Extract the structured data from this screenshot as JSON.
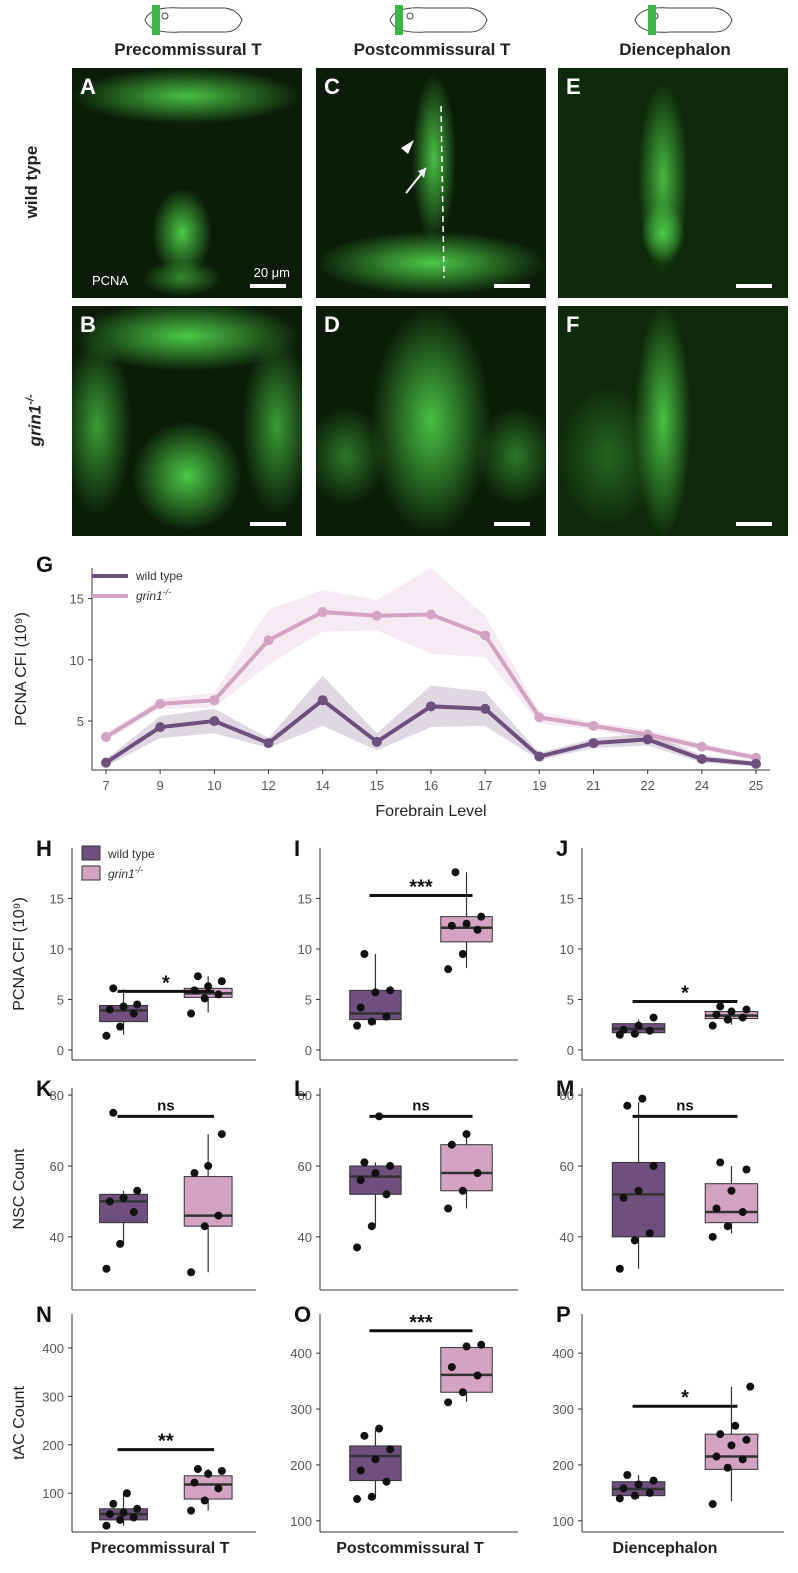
{
  "columns": [
    {
      "title": "Precommissural T"
    },
    {
      "title": "Postcommissural T"
    },
    {
      "title": "Diencephalon"
    }
  ],
  "rows": [
    {
      "label": "wild type"
    },
    {
      "label": "grin1",
      "label_sup": "-/-"
    }
  ],
  "micro_panels": [
    {
      "letter": "A"
    },
    {
      "letter": "C"
    },
    {
      "letter": "E"
    },
    {
      "letter": "B"
    },
    {
      "letter": "D"
    },
    {
      "letter": "F"
    }
  ],
  "stain_label": "PCNA",
  "scale_label": "20 μm",
  "colors": {
    "wild_type": "#6e4f7e",
    "grin1": "#d4a3c4"
  },
  "chart_data": [
    {
      "panel": "G",
      "type": "line",
      "ylabel": "PCNA CFI (10⁹)",
      "xlabel": "Forebrain Level",
      "x": [
        7,
        9,
        10,
        12,
        14,
        15,
        16,
        17,
        19,
        21,
        22,
        24,
        25
      ],
      "ylim": [
        1,
        17.5
      ],
      "yticks": [
        5,
        10,
        15
      ],
      "legend": "top-left",
      "series": [
        {
          "name": "wild type",
          "values": [
            1.6,
            4.5,
            5.0,
            3.2,
            6.7,
            3.3,
            6.2,
            6.0,
            2.1,
            3.2,
            3.5,
            1.9,
            1.5
          ],
          "lower": [
            1.3,
            3.6,
            4.0,
            2.8,
            4.6,
            2.6,
            4.5,
            4.6,
            1.8,
            2.8,
            3.0,
            1.6,
            1.3
          ],
          "upper": [
            1.9,
            5.4,
            6.0,
            3.6,
            8.7,
            4.0,
            7.9,
            7.4,
            2.4,
            3.6,
            4.0,
            2.2,
            1.7
          ]
        },
        {
          "name": "grin1",
          "name_sup": "-/-",
          "values": [
            3.7,
            6.4,
            6.7,
            11.6,
            13.9,
            13.6,
            13.7,
            12.0,
            5.3,
            4.6,
            3.9,
            2.9,
            2.0
          ],
          "lower": [
            3.4,
            6.0,
            6.1,
            9.6,
            12.3,
            12.4,
            10.5,
            10.2,
            4.8,
            4.3,
            3.4,
            2.6,
            1.8
          ],
          "upper": [
            4.0,
            6.8,
            7.3,
            14.1,
            15.7,
            14.9,
            17.5,
            13.6,
            5.8,
            4.9,
            4.3,
            3.2,
            2.2
          ]
        }
      ]
    },
    {
      "panel": "H",
      "type": "box",
      "ylabel": "PCNA CFI (10⁹)",
      "ylim": [
        -1,
        20
      ],
      "yticks": [
        0,
        5,
        10,
        15
      ],
      "sig": "*",
      "sig_y": 5.8,
      "legend": "top-left",
      "wt": {
        "min": 1.5,
        "q1": 2.8,
        "med": 3.9,
        "q3": 4.4,
        "max": 6.0,
        "points": [
          1.4,
          2.3,
          3.6,
          4.0,
          4.3,
          4.5,
          6.1
        ]
      },
      "grin": {
        "min": 3.7,
        "q1": 5.2,
        "med": 5.6,
        "q3": 6.1,
        "max": 7.3,
        "points": [
          3.6,
          5.1,
          5.5,
          5.9,
          6.3,
          6.8,
          7.3
        ]
      }
    },
    {
      "panel": "I",
      "type": "box",
      "ylim": [
        -1,
        20
      ],
      "yticks": [
        0,
        5,
        10,
        15
      ],
      "sig": "***",
      "sig_y": 15.3,
      "wt": {
        "min": 2.5,
        "q1": 3.0,
        "med": 3.6,
        "q3": 5.9,
        "max": 9.5,
        "points": [
          2.4,
          2.8,
          3.3,
          4.2,
          5.7,
          5.9,
          9.5
        ]
      },
      "grin": {
        "min": 8.1,
        "q1": 10.7,
        "med": 12.1,
        "q3": 13.2,
        "max": 17.6,
        "points": [
          8.0,
          9.5,
          11.9,
          12.3,
          12.5,
          13.2,
          17.6
        ]
      }
    },
    {
      "panel": "J",
      "type": "box",
      "ylim": [
        -1,
        20
      ],
      "yticks": [
        0,
        5,
        10,
        15
      ],
      "sig": "*",
      "sig_y": 4.8,
      "wt": {
        "min": 1.5,
        "q1": 1.7,
        "med": 2.1,
        "q3": 2.6,
        "max": 3.0,
        "points": [
          1.5,
          1.6,
          1.9,
          2.0,
          2.4,
          3.2
        ]
      },
      "grin": {
        "min": 2.5,
        "q1": 3.1,
        "med": 3.4,
        "q3": 3.8,
        "max": 4.2,
        "points": [
          2.4,
          3.0,
          3.2,
          3.5,
          3.8,
          4.0,
          4.3
        ]
      }
    },
    {
      "panel": "K",
      "type": "box",
      "ylabel": "NSC Count",
      "ylim": [
        25,
        82
      ],
      "yticks": [
        40,
        60,
        80
      ],
      "sig": "ns",
      "sig_y": 74,
      "wt": {
        "min": 38,
        "q1": 44,
        "med": 50,
        "q3": 52,
        "max": 53,
        "points": [
          31,
          38,
          47,
          50,
          51,
          53,
          75
        ]
      },
      "grin": {
        "min": 30,
        "q1": 43,
        "med": 46,
        "q3": 57,
        "max": 69,
        "points": [
          30,
          43,
          46,
          58,
          60,
          69
        ]
      }
    },
    {
      "panel": "L",
      "type": "box",
      "ylim": [
        25,
        82
      ],
      "yticks": [
        40,
        60,
        80
      ],
      "sig": "ns",
      "sig_y": 74,
      "wt": {
        "min": 43,
        "q1": 52,
        "med": 57,
        "q3": 60,
        "max": 61,
        "points": [
          37,
          43,
          52,
          56,
          58,
          60,
          61,
          74
        ]
      },
      "grin": {
        "min": 48,
        "q1": 53,
        "med": 58,
        "q3": 66,
        "max": 69,
        "points": [
          48,
          53,
          58,
          66,
          69
        ]
      }
    },
    {
      "panel": "M",
      "type": "box",
      "ylim": [
        25,
        82
      ],
      "yticks": [
        40,
        60,
        80
      ],
      "sig": "ns",
      "sig_y": 74,
      "wt": {
        "min": 31,
        "q1": 40,
        "med": 52,
        "q3": 61,
        "max": 78,
        "points": [
          31,
          39,
          41,
          51,
          53,
          60,
          77,
          79
        ]
      },
      "grin": {
        "min": 41,
        "q1": 44,
        "med": 47,
        "q3": 55,
        "max": 60,
        "points": [
          40,
          43,
          47,
          48,
          53,
          59,
          61
        ]
      }
    },
    {
      "panel": "N",
      "type": "box",
      "ylabel": "tAC Count",
      "ylim": [
        20,
        470
      ],
      "yticks": [
        100,
        200,
        300,
        400
      ],
      "sig": "**",
      "sig_y": 190,
      "wt": {
        "min": 33,
        "q1": 45,
        "med": 57,
        "q3": 68,
        "max": 100,
        "points": [
          33,
          45,
          50,
          57,
          60,
          68,
          78,
          100
        ]
      },
      "grin": {
        "min": 64,
        "q1": 88,
        "med": 118,
        "q3": 136,
        "max": 150,
        "points": [
          64,
          85,
          110,
          122,
          140,
          146,
          150
        ]
      }
    },
    {
      "panel": "O",
      "type": "box",
      "ylim": [
        80,
        470
      ],
      "yticks": [
        100,
        200,
        300,
        400
      ],
      "sig": "***",
      "sig_y": 440,
      "wt": {
        "min": 140,
        "q1": 172,
        "med": 216,
        "q3": 234,
        "max": 262,
        "points": [
          139,
          143,
          170,
          190,
          210,
          228,
          252,
          265
        ]
      },
      "grin": {
        "min": 313,
        "q1": 330,
        "med": 361,
        "q3": 410,
        "max": 415,
        "points": [
          312,
          330,
          360,
          375,
          412,
          415
        ]
      }
    },
    {
      "panel": "P",
      "type": "box",
      "ylim": [
        80,
        470
      ],
      "yticks": [
        100,
        200,
        300,
        400
      ],
      "sig": "*",
      "sig_y": 305,
      "wt": {
        "min": 140,
        "q1": 145,
        "med": 157,
        "q3": 170,
        "max": 182,
        "points": [
          140,
          145,
          150,
          158,
          165,
          172,
          182
        ]
      },
      "grin": {
        "min": 135,
        "q1": 192,
        "med": 215,
        "q3": 255,
        "max": 340,
        "points": [
          130,
          195,
          210,
          215,
          235,
          245,
          255,
          270,
          340
        ]
      }
    }
  ],
  "bottom_labels": [
    "Precommissural T",
    "Postcommissural T",
    "Diencephalon"
  ]
}
